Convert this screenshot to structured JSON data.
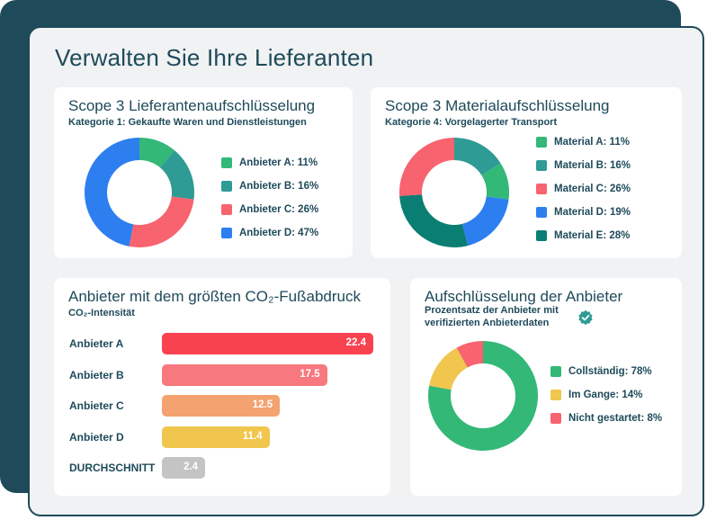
{
  "page": {
    "title": "Verwalten Sie Ihre Lieferanten"
  },
  "colors": {
    "green": "#34b878",
    "teal": "#2e9b94",
    "coral": "#f7636f",
    "blue": "#2d7ff0",
    "dark_teal": "#0a7e72",
    "yellow": "#f0c64e"
  },
  "supplier_card": {
    "title": "Scope 3 Lieferantenaufschlüsselung",
    "subtitle": "Kategorie 1: Gekaufte Waren und Dienstleistungen"
  },
  "material_card": {
    "title": "Scope 3 Materialaufschlüsselung",
    "subtitle": "Kategorie 4: Vorgelagerter Transport"
  },
  "co2_card": {
    "title": "Anbieter mit dem größten CO₂-Fußabdruck",
    "subtitle": "CO₂-Intensität"
  },
  "status_card": {
    "title": "Aufschlüsselung der Anbieter",
    "subtitle": "Prozentsatz der Anbieter mit verifizierten Anbieterdaten",
    "badge_icon": "check-badge-icon"
  },
  "chart_data": [
    {
      "type": "pie",
      "donut": true,
      "legend": "right",
      "labels": [
        "Anbieter A: 11%",
        "Anbieter B: 16%",
        "Anbieter C: 26%",
        "Anbieter D: 47%"
      ],
      "categories": [
        "Anbieter A",
        "Anbieter B",
        "Anbieter C",
        "Anbieter D"
      ],
      "values": [
        11,
        16,
        26,
        47
      ],
      "colors": [
        "#34b878",
        "#2e9b94",
        "#f7636f",
        "#2d7ff0"
      ]
    },
    {
      "type": "pie",
      "donut": true,
      "legend": "right",
      "labels": [
        "Material A: 11%",
        "Material B: 16%",
        "Material C: 26%",
        "Material D: 19%",
        "Material E: 28%"
      ],
      "categories": [
        "Material A",
        "Material B",
        "Material C",
        "Material D",
        "Material E"
      ],
      "values": [
        11,
        16,
        26,
        19,
        28
      ],
      "colors": [
        "#34b878",
        "#2e9b94",
        "#f7636f",
        "#2d7ff0",
        "#0a7e72"
      ],
      "draw_order": [
        "Material B",
        "Material A",
        "Material D",
        "Material E",
        "Material C"
      ]
    },
    {
      "type": "bar",
      "orientation": "horizontal",
      "categories": [
        "Anbieter A",
        "Anbieter B",
        "Anbieter C",
        "Anbieter D",
        "DURCHSCHNITT"
      ],
      "values": [
        22.4,
        17.5,
        12.5,
        11.4,
        2.4
      ],
      "value_labels": [
        "22.4",
        "17.5",
        "12.5",
        "11.4",
        "2.4"
      ],
      "colors": [
        "#f9424f",
        "#f7787e",
        "#f4a26f",
        "#f0c64e",
        "#c4c4c4"
      ],
      "xlim": [
        0,
        22.4
      ],
      "grid": false
    },
    {
      "type": "pie",
      "donut": true,
      "legend": "right",
      "labels": [
        "Collständig: 78%",
        "Im Gange: 14%",
        "Nicht gestartet: 8%"
      ],
      "categories": [
        "Collständig",
        "Im Gange",
        "Nicht gestartet"
      ],
      "values": [
        78,
        14,
        8
      ],
      "colors": [
        "#34b878",
        "#f0c64e",
        "#f7636f"
      ]
    }
  ]
}
